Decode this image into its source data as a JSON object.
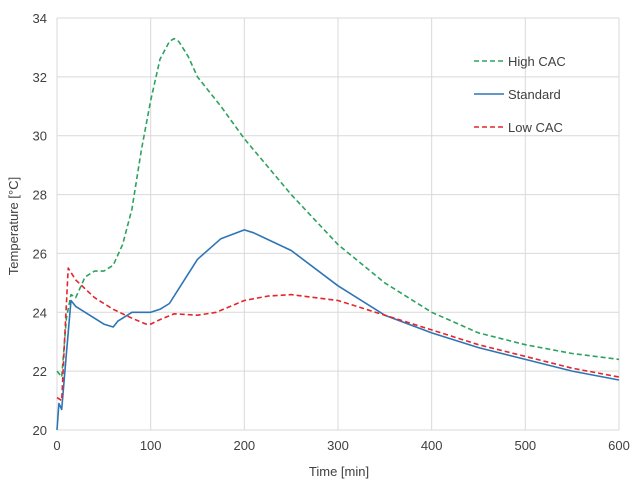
{
  "chart_data": {
    "type": "line",
    "xlabel": "Time [min]",
    "ylabel": "Temperature [°C]",
    "xlim": [
      0,
      600
    ],
    "ylim": [
      20,
      34
    ],
    "xticks": [
      0,
      100,
      200,
      300,
      400,
      500,
      600
    ],
    "yticks": [
      20,
      22,
      24,
      26,
      28,
      30,
      32,
      34
    ],
    "grid": true,
    "legend_position": "top-right",
    "series": [
      {
        "name": "High CAC",
        "color": "#2ca25f",
        "dash": "dashed",
        "x": [
          0,
          5,
          10,
          15,
          20,
          30,
          40,
          50,
          60,
          70,
          80,
          90,
          100,
          110,
          120,
          125,
          130,
          140,
          150,
          175,
          200,
          250,
          300,
          350,
          400,
          450,
          500,
          550,
          600
        ],
        "y": [
          22.0,
          21.8,
          23.8,
          24.6,
          24.5,
          25.2,
          25.4,
          25.4,
          25.6,
          26.3,
          27.5,
          29.5,
          31.2,
          32.6,
          33.2,
          33.3,
          33.2,
          32.7,
          32.0,
          31.0,
          29.9,
          28.0,
          26.3,
          25.0,
          24.0,
          23.3,
          22.9,
          22.6,
          22.4
        ]
      },
      {
        "name": "Standard",
        "color": "#2e75b6",
        "dash": "solid",
        "x": [
          0,
          2,
          5,
          10,
          15,
          20,
          30,
          40,
          50,
          60,
          65,
          70,
          80,
          90,
          100,
          110,
          120,
          130,
          150,
          175,
          200,
          210,
          250,
          300,
          350,
          400,
          450,
          500,
          550,
          600
        ],
        "y": [
          20.0,
          20.9,
          20.7,
          22.6,
          24.4,
          24.2,
          24.0,
          23.8,
          23.6,
          23.5,
          23.7,
          23.8,
          24.0,
          24.0,
          24.0,
          24.1,
          24.3,
          24.8,
          25.8,
          26.5,
          26.8,
          26.7,
          26.1,
          24.9,
          23.9,
          23.3,
          22.8,
          22.4,
          22.0,
          21.7
        ]
      },
      {
        "name": "Low CAC",
        "color": "#e3262b",
        "dash": "dashed",
        "x": [
          0,
          5,
          8,
          12,
          20,
          40,
          60,
          80,
          95,
          100,
          110,
          125,
          150,
          170,
          185,
          200,
          225,
          250,
          275,
          300,
          350,
          400,
          450,
          500,
          550,
          600
        ],
        "y": [
          21.1,
          21.0,
          23.0,
          25.5,
          25.1,
          24.5,
          24.1,
          23.8,
          23.6,
          23.6,
          23.75,
          23.95,
          23.9,
          24.0,
          24.2,
          24.4,
          24.55,
          24.6,
          24.5,
          24.4,
          23.9,
          23.4,
          22.9,
          22.5,
          22.1,
          21.8
        ]
      }
    ]
  }
}
